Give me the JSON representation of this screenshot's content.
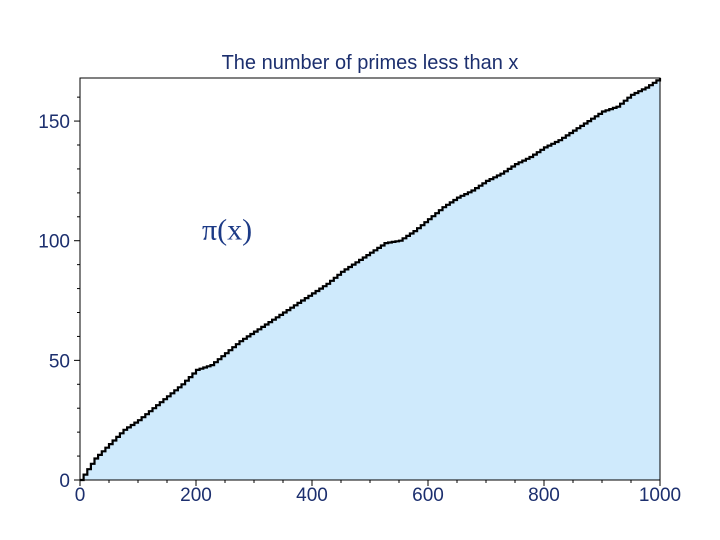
{
  "chart_data": {
    "type": "area",
    "title": "The number of primes less than x",
    "xlabel": "",
    "ylabel": "",
    "xlim": [
      0,
      1000
    ],
    "ylim": [
      0,
      168
    ],
    "x_ticks": [
      0,
      200,
      400,
      600,
      800,
      1000
    ],
    "x_tick_labels": [
      "0",
      "200",
      "400",
      "600",
      "800",
      "1000"
    ],
    "y_ticks": [
      0,
      50,
      100,
      150
    ],
    "y_tick_labels": [
      "0",
      "50",
      "100",
      "150"
    ],
    "grid": false,
    "fill_color": "#cfeafc",
    "line_color": "#000000",
    "annotation": {
      "text": "π(x)",
      "x": 400,
      "y": 103
    },
    "series": [
      {
        "x": [
          0,
          25,
          50,
          75,
          100,
          125,
          150,
          175,
          200,
          225,
          250,
          275,
          300,
          325,
          350,
          375,
          400,
          425,
          450,
          475,
          500,
          525,
          550,
          575,
          600,
          625,
          650,
          675,
          700,
          725,
          750,
          775,
          800,
          825,
          850,
          875,
          900,
          925,
          950,
          975,
          1000
        ],
        "y": [
          0,
          9,
          15,
          21,
          25,
          30,
          35,
          40,
          46,
          48,
          53,
          58,
          62,
          66,
          70,
          74,
          78,
          82,
          87,
          91,
          95,
          99,
          100,
          104,
          109,
          114,
          118,
          121,
          125,
          128,
          132,
          135,
          139,
          142,
          146,
          150,
          154,
          156,
          161,
          164,
          168
        ]
      }
    ]
  }
}
